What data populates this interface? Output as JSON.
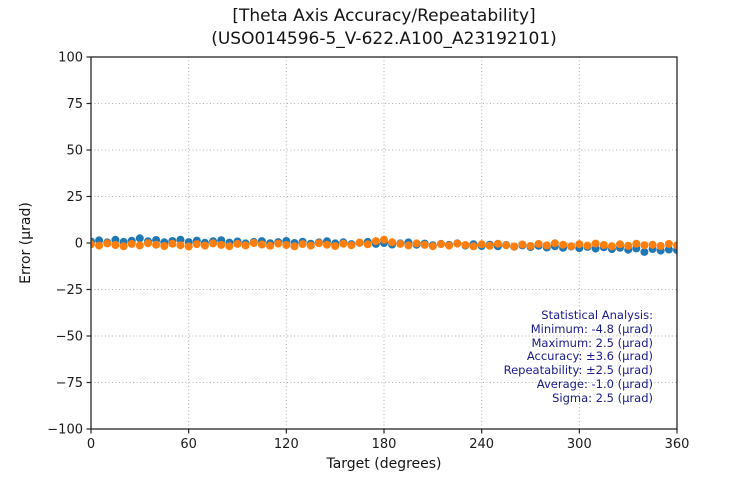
{
  "chart_data": {
    "type": "scatter",
    "title": "[Theta Axis Accuracy/Repeatability]",
    "subtitle": "(USO014596-5_V-622.A100_A23192101)",
    "xlabel": "Target (degrees)",
    "ylabel": "Error (µrad)",
    "xlim": [
      0,
      360
    ],
    "ylim": [
      -100,
      100
    ],
    "xticks": [
      0,
      60,
      120,
      180,
      240,
      300,
      360
    ],
    "yticks": [
      100,
      75,
      50,
      25,
      0,
      -25,
      -50,
      -75,
      -100
    ],
    "grid": true,
    "legend": "none",
    "marker_diameter_px": 8,
    "x": [
      0,
      5,
      10,
      15,
      20,
      25,
      30,
      35,
      40,
      45,
      50,
      55,
      60,
      65,
      70,
      75,
      80,
      85,
      90,
      95,
      100,
      105,
      110,
      115,
      120,
      125,
      130,
      135,
      140,
      145,
      150,
      155,
      160,
      165,
      170,
      175,
      180,
      185,
      190,
      195,
      200,
      205,
      210,
      215,
      220,
      225,
      230,
      235,
      240,
      245,
      250,
      255,
      260,
      265,
      270,
      275,
      280,
      285,
      290,
      295,
      300,
      305,
      310,
      315,
      320,
      325,
      330,
      335,
      340,
      345,
      350,
      355,
      360
    ],
    "series": [
      {
        "name": "blue",
        "color": "#1f77b4",
        "y": [
          0.8,
          1.4,
          0.3,
          1.7,
          0.6,
          1.2,
          2.5,
          0.9,
          1.6,
          0.4,
          1.1,
          1.8,
          0.5,
          1.3,
          0.1,
          0.9,
          1.5,
          0.2,
          0.8,
          -0.2,
          0.6,
          1.0,
          -0.1,
          0.5,
          1.1,
          0.0,
          0.7,
          -0.4,
          0.3,
          0.9,
          -0.2,
          0.4,
          -0.6,
          0.1,
          0.6,
          -0.5,
          0.0,
          -0.8,
          -0.2,
          0.3,
          -0.9,
          -0.3,
          -1.2,
          -0.5,
          -1.0,
          -0.2,
          -1.4,
          -0.7,
          -1.6,
          -0.9,
          -1.8,
          -1.1,
          -2.0,
          -1.3,
          -2.2,
          -1.5,
          -2.4,
          -1.7,
          -2.6,
          -1.9,
          -2.8,
          -2.1,
          -3.0,
          -2.3,
          -3.3,
          -2.6,
          -3.6,
          -2.9,
          -4.8,
          -3.2,
          -4.1,
          -3.5,
          -3.8
        ]
      },
      {
        "name": "orange",
        "color": "#ff7f0e",
        "y": [
          -0.7,
          -1.4,
          -0.2,
          -1.1,
          -1.8,
          -0.5,
          -1.3,
          -0.1,
          -0.9,
          -1.6,
          -0.4,
          -1.2,
          -1.9,
          -0.6,
          -1.4,
          -0.2,
          -1.0,
          -1.7,
          -0.5,
          -1.3,
          0.0,
          -0.8,
          -1.5,
          -0.3,
          -1.1,
          -1.8,
          -0.6,
          -1.4,
          -0.1,
          -0.9,
          -1.6,
          -0.4,
          -1.2,
          0.2,
          -0.7,
          1.0,
          1.8,
          0.4,
          -0.5,
          -1.3,
          -0.2,
          -1.0,
          -1.7,
          -0.6,
          -1.4,
          -0.3,
          -1.1,
          -1.8,
          -0.7,
          -1.5,
          -0.4,
          -1.2,
          -1.9,
          -0.8,
          -1.6,
          -0.5,
          -1.3,
          -0.1,
          -0.9,
          -1.7,
          -0.6,
          -1.4,
          -0.3,
          -1.1,
          -1.8,
          -0.7,
          -1.5,
          -0.4,
          -1.2,
          -0.9,
          -1.6,
          -0.5,
          -1.3
        ]
      }
    ],
    "annotation": {
      "color": "#1a1a8c",
      "lines": [
        "Statistical Analysis:",
        "Minimum: -4.8 (µrad)",
        "Maximum: 2.5 (µrad)",
        "Accuracy: ±3.6 (µrad)",
        "Repeatability: ±2.5 (µrad)",
        "Average: -1.0 (µrad)",
        "Sigma: 2.5 (µrad)"
      ]
    },
    "stats": {
      "minimum_urad": -4.8,
      "maximum_urad": 2.5,
      "accuracy_urad": 3.6,
      "repeatability_urad": 2.5,
      "average_urad": -1.0,
      "sigma_urad": 2.5
    }
  }
}
